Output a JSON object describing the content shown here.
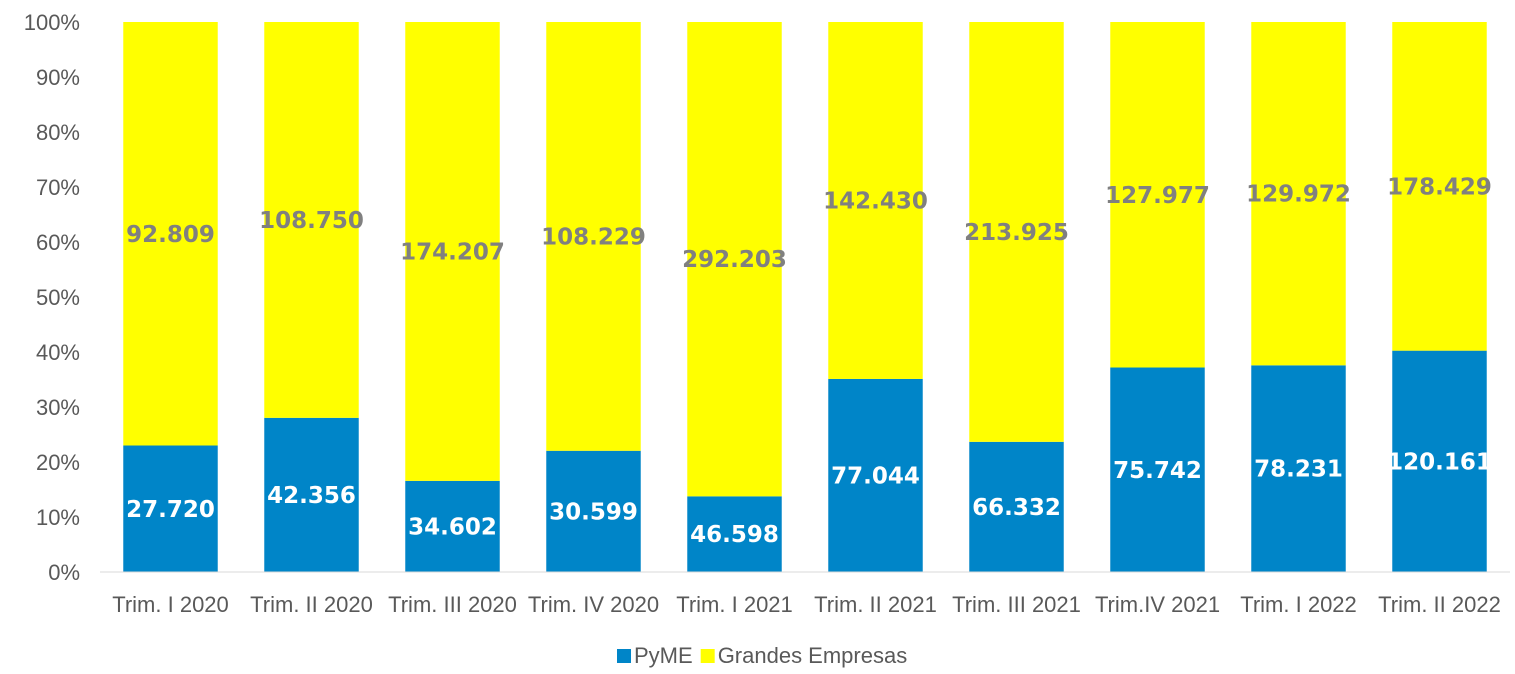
{
  "chart_data": {
    "type": "bar",
    "stacked": true,
    "normalized": true,
    "categories": [
      "Trim. I 2020",
      "Trim. II 2020",
      "Trim. III 2020",
      "Trim. IV 2020",
      "Trim. I 2021",
      "Trim. II 2021",
      "Trim. III 2021",
      "Trim.IV 2021",
      "Trim. I 2022",
      "Trim. II 2022"
    ],
    "series": [
      {
        "name": "PyME",
        "color": "#0085C8",
        "label_color": "#FFFFFF",
        "values": [
          27720,
          42356,
          34602,
          30599,
          46598,
          77044,
          66332,
          75742,
          78231,
          120161
        ],
        "labels": [
          "27.720",
          "42.356",
          "34.602",
          "30.599",
          "46.598",
          "77.044",
          "66.332",
          "75.742",
          "78.231",
          "120.161"
        ]
      },
      {
        "name": "Grandes Empresas",
        "color": "#FFFF00",
        "label_color": "#808080",
        "values": [
          92809,
          108750,
          174207,
          108229,
          292203,
          142430,
          213925,
          127977,
          129972,
          178429
        ],
        "labels": [
          "92.809",
          "108.750",
          "174.207",
          "108.229",
          "292.203",
          "142.430",
          "213.925",
          "127.977",
          "129.972",
          "178.429"
        ]
      }
    ],
    "ylim": [
      0,
      100
    ],
    "yticks": [
      "0%",
      "10%",
      "20%",
      "30%",
      "40%",
      "50%",
      "60%",
      "70%",
      "80%",
      "90%",
      "100%"
    ],
    "grid": false,
    "legend": "bottom",
    "title": "",
    "xlabel": "",
    "ylabel": ""
  }
}
